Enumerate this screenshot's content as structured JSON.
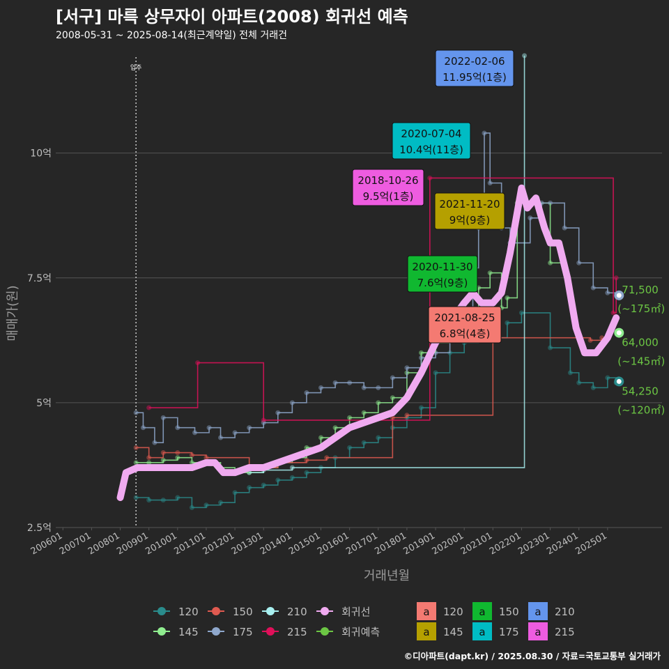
{
  "header": {
    "title": "[서구] 마륵 상무자이 아파트(2008) 회귀선 예측",
    "subtitle": "2008-05-31 ~ 2025-08-14(최근계약일) 전체 거래건"
  },
  "footer": {
    "credit": "©디아파트(dapt.kr) / 2025.08.30 / 자료=국토교통부 실거래가"
  },
  "colors": {
    "background": "#262626",
    "grid": "#555555",
    "axis_text": "#bfbfbf",
    "s120": "#2a8c8c",
    "s145": "#90ee90",
    "s150": "#e05a50",
    "s175": "#8fa8cc",
    "s210": "#a8f0f0",
    "s215": "#e0105a",
    "regression": "#f0aaf0",
    "forecast": "#6cc644"
  },
  "chart_data": {
    "type": "line",
    "title": "[서구] 마륵 상무자이 아파트(2008) 회귀선 예측",
    "xlabel": "거래년월",
    "ylabel": "매매가(원)",
    "x_range": [
      2005.75,
      2026.9
    ],
    "ylim": [
      2.5,
      12.2
    ],
    "x_tick_labels": [
      "200601",
      "200701",
      "200801",
      "200901",
      "201001",
      "201101",
      "201201",
      "201301",
      "201401",
      "201501",
      "201601",
      "201701",
      "201801",
      "201901",
      "202001",
      "202101",
      "202201",
      "202301",
      "202401",
      "202501"
    ],
    "y_ticks": [
      2.5,
      5,
      7.5,
      10
    ],
    "y_tick_labels": [
      "2.5억",
      "5억",
      "7.5억",
      "10억"
    ],
    "move_in": {
      "x": 2008.55,
      "label": "입주"
    },
    "series": [
      {
        "name": "120",
        "color": "#2a8c8c",
        "x": [
          2008.55,
          2009.0,
          2009.5,
          2010.0,
          2010.5,
          2011.0,
          2011.5,
          2012.0,
          2012.5,
          2013.0,
          2013.5,
          2014.0,
          2014.5,
          2015.0,
          2015.5,
          2016.0,
          2016.5,
          2017.0,
          2017.5,
          2018.0,
          2018.5,
          2019.0,
          2019.5,
          2020.0,
          2020.5,
          2021.0,
          2021.5,
          2022.0,
          2023.0,
          2023.7,
          2024.0,
          2024.5,
          2025.0,
          2025.3
        ],
        "y": [
          3.1,
          3.05,
          3.05,
          3.1,
          2.9,
          2.95,
          3.0,
          3.2,
          3.3,
          3.35,
          3.45,
          3.5,
          3.6,
          3.7,
          3.9,
          4.1,
          4.2,
          4.3,
          4.5,
          4.7,
          4.9,
          5.6,
          6.0,
          6.2,
          6.3,
          6.3,
          6.6,
          6.8,
          6.1,
          5.6,
          5.4,
          5.3,
          5.5,
          5.4
        ]
      },
      {
        "name": "145",
        "color": "#90ee90",
        "x": [
          2008.55,
          2009.0,
          2009.5,
          2010.0,
          2010.5,
          2011.0,
          2011.5,
          2012.0,
          2012.5,
          2013.0,
          2013.5,
          2014.0,
          2014.5,
          2015.0,
          2015.5,
          2016.0,
          2016.5,
          2017.0,
          2017.5,
          2018.0,
          2018.5,
          2019.0,
          2019.5,
          2020.0,
          2020.5,
          2020.9,
          2021.3,
          2021.5,
          2021.85,
          2022.2,
          2023.0,
          2023.4
        ],
        "y": [
          3.8,
          3.8,
          3.85,
          3.9,
          3.8,
          3.8,
          3.7,
          3.6,
          3.6,
          3.7,
          3.8,
          3.9,
          4.1,
          4.3,
          4.5,
          4.7,
          4.8,
          5.0,
          5.1,
          5.6,
          6.0,
          6.2,
          6.5,
          6.8,
          7.3,
          7.6,
          6.9,
          7.1,
          9.0,
          9.0,
          7.8,
          7.9
        ]
      },
      {
        "name": "150",
        "color": "#e05a50",
        "x": [
          2008.55,
          2009.0,
          2009.5,
          2010.0,
          2010.5,
          2011.0,
          2012.5,
          2013.5,
          2014.5,
          2015.2,
          2017.5,
          2018.0,
          2021.0,
          2024.4,
          2024.8
        ],
        "y": [
          4.1,
          3.9,
          4.0,
          4.0,
          3.95,
          3.9,
          3.7,
          3.8,
          3.85,
          3.9,
          4.7,
          4.75,
          6.3,
          6.25,
          6.3
        ]
      },
      {
        "name": "175",
        "color": "#8fa8cc",
        "x": [
          2008.55,
          2008.8,
          2009.2,
          2009.5,
          2010.0,
          2010.6,
          2011.1,
          2011.5,
          2012.0,
          2012.5,
          2013.0,
          2013.5,
          2014.0,
          2014.5,
          2015.0,
          2015.5,
          2016.0,
          2016.5,
          2017.0,
          2017.5,
          2018.0,
          2018.5,
          2019.0,
          2019.5,
          2020.0,
          2020.3,
          2020.5,
          2020.7,
          2020.9,
          2021.3,
          2021.6,
          2022.3,
          2022.7,
          2023.0,
          2023.5,
          2024.0,
          2024.5,
          2025.0,
          2025.4
        ],
        "y": [
          4.8,
          4.5,
          4.2,
          4.7,
          4.5,
          4.4,
          4.5,
          4.3,
          4.4,
          4.5,
          4.6,
          4.8,
          5.0,
          5.2,
          5.3,
          5.4,
          5.4,
          5.3,
          5.3,
          5.5,
          5.7,
          5.9,
          6.0,
          6.3,
          6.8,
          7.7,
          8.5,
          10.4,
          9.4,
          8.5,
          8.2,
          8.7,
          9.0,
          9.0,
          8.5,
          7.8,
          7.3,
          7.2,
          7.15
        ]
      },
      {
        "name": "210",
        "color": "#a8f0f0",
        "x": [
          2012.5,
          2013.0,
          2014.0,
          2022.1
        ],
        "y": [
          3.6,
          3.65,
          3.7,
          11.95
        ]
      },
      {
        "name": "215",
        "color": "#e0105a",
        "x": [
          2009.0,
          2010.7,
          2013.0,
          2018.8,
          2025.2,
          2025.3
        ],
        "y": [
          4.9,
          5.8,
          4.65,
          9.5,
          6.8,
          7.5
        ]
      }
    ],
    "regression": {
      "name": "회귀선",
      "color": "#f0aaf0",
      "x": [
        2008.0,
        2008.2,
        2008.6,
        2009.0,
        2009.5,
        2010.0,
        2010.5,
        2011.0,
        2011.3,
        2011.6,
        2012.0,
        2012.5,
        2013.0,
        2013.5,
        2014.0,
        2014.5,
        2015.0,
        2015.5,
        2016.0,
        2016.5,
        2017.0,
        2017.5,
        2018.0,
        2018.5,
        2019.0,
        2019.5,
        2020.0,
        2020.3,
        2020.6,
        2021.0,
        2021.3,
        2021.6,
        2022.0,
        2022.2,
        2022.5,
        2022.8,
        2023.0,
        2023.3,
        2023.6,
        2023.9,
        2024.2,
        2024.6,
        2025.0,
        2025.3
      ],
      "y": [
        3.1,
        3.6,
        3.7,
        3.7,
        3.7,
        3.7,
        3.7,
        3.8,
        3.8,
        3.6,
        3.6,
        3.7,
        3.7,
        3.8,
        3.9,
        4.0,
        4.1,
        4.3,
        4.5,
        4.6,
        4.7,
        4.8,
        5.1,
        5.6,
        6.2,
        6.6,
        7.0,
        7.2,
        7.0,
        7.0,
        7.2,
        8.0,
        9.3,
        8.9,
        9.1,
        8.5,
        8.2,
        8.2,
        7.5,
        6.5,
        6.0,
        6.0,
        6.3,
        6.7
      ]
    },
    "forecast_points": [
      {
        "label": "71,500",
        "sublabel": "(~175㎡)",
        "value": 7.15,
        "color": "#8fa8cc"
      },
      {
        "label": "64,000",
        "sublabel": "(~145㎡)",
        "value": 6.4,
        "color": "#90ee90"
      },
      {
        "label": "54,250",
        "sublabel": "(~120㎡)",
        "value": 5.425,
        "color": "#2a8c8c"
      }
    ],
    "annotations": [
      {
        "date": "2022-02-06",
        "text": "11.95억(1층)",
        "color": "#6495ed",
        "x": 2022.1,
        "y": 11.95
      },
      {
        "date": "2020-07-04",
        "text": "10.4억(11층)",
        "color": "#00bcc4",
        "x": 2020.5,
        "y": 10.4
      },
      {
        "date": "2018-10-26",
        "text": "9.5억(1층)",
        "color": "#ee5ce0",
        "x": 2018.8,
        "y": 9.5
      },
      {
        "date": "2021-11-20",
        "text": "9억(9층)",
        "color": "#b5a000",
        "x": 2021.9,
        "y": 9.0
      },
      {
        "date": "2020-11-30",
        "text": "7.6억(9층)",
        "color": "#10b830",
        "x": 2020.9,
        "y": 7.6
      },
      {
        "date": "2021-08-25",
        "text": "6.8억(4층)",
        "color": "#f47a72",
        "x": 2021.6,
        "y": 6.8
      }
    ],
    "legend_lines": [
      {
        "label": "120",
        "color": "#2a8c8c"
      },
      {
        "label": "150",
        "color": "#e05a50"
      },
      {
        "label": "210",
        "color": "#a8f0f0"
      },
      {
        "label": "회귀선",
        "color": "#f0aaf0"
      },
      {
        "label": "145",
        "color": "#90ee90"
      },
      {
        "label": "175",
        "color": "#8fa8cc"
      },
      {
        "label": "215",
        "color": "#e0105a"
      },
      {
        "label": "회귀예측",
        "color": "#6cc644"
      }
    ],
    "legend_boxes": [
      {
        "label": "120",
        "color": "#f47a72"
      },
      {
        "label": "150",
        "color": "#10b830"
      },
      {
        "label": "210",
        "color": "#6495ed"
      },
      {
        "label": "145",
        "color": "#b5a000"
      },
      {
        "label": "175",
        "color": "#00bcc4"
      },
      {
        "label": "215",
        "color": "#ee5ce0"
      }
    ],
    "legend_box_glyph": "a"
  }
}
